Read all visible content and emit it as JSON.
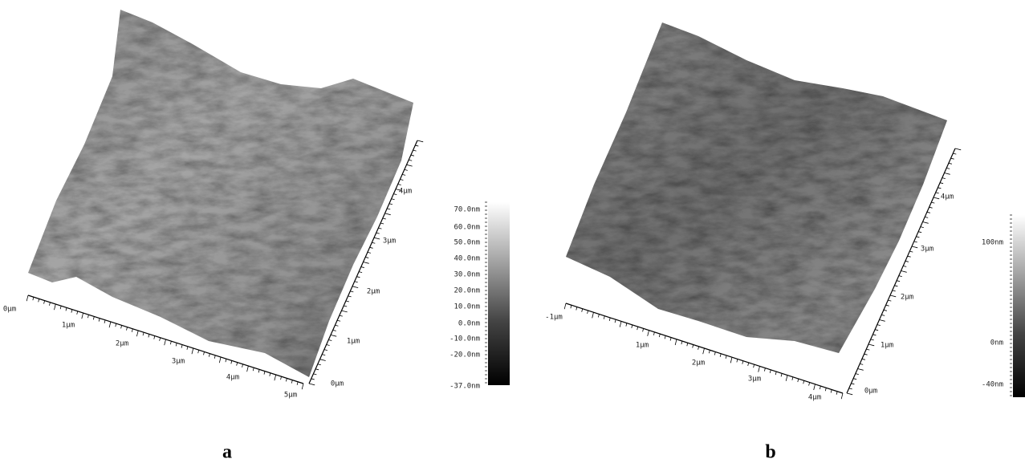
{
  "panels": [
    {
      "label": "a",
      "x_axis_labels": [
        "0μm",
        "1μm",
        "2μm",
        "3μm",
        "4μm",
        "5μm"
      ],
      "y_axis_labels": [
        "0μm",
        "1μm",
        "2μm",
        "3μm",
        "4μm"
      ],
      "colorbar_labels": [
        "70.0nm",
        "60.0nm",
        "50.0nm",
        "40.0nm",
        "30.0nm",
        "20.0nm",
        "10.0nm",
        "0.0nm",
        "-10.0nm",
        "-20.0nm",
        "-37.0nm"
      ]
    },
    {
      "label": "b",
      "x_axis_labels": [
        "-1μm",
        "1μm",
        "2μm",
        "3μm",
        "4μm"
      ],
      "y_axis_labels": [
        "0μm",
        "1μm",
        "2μm",
        "3μm",
        "4μm"
      ],
      "colorbar_labels": [
        "100nm",
        "0nm",
        "-40nm"
      ]
    }
  ]
}
